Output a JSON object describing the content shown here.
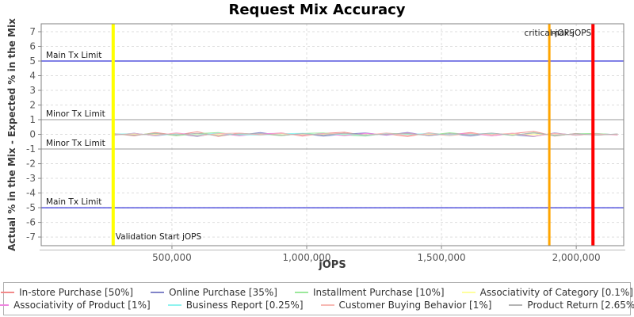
{
  "title": "Request Mix Accuracy",
  "chart_data": {
    "type": "line",
    "title": "Request Mix Accuracy",
    "xlabel": "jOPS",
    "ylabel": "Actual % in the Mix - Expected % in the Mix",
    "x_range": [
      15000,
      2176000
    ],
    "y_range": [
      -7.59,
      7.54
    ],
    "x_ticks": [
      {
        "value": 500000,
        "label": "500,000"
      },
      {
        "value": 1000000,
        "label": "1,000,000"
      },
      {
        "value": 1500000,
        "label": "1,500,000"
      },
      {
        "value": 2000000,
        "label": "2,000,000"
      }
    ],
    "y_ticks": [
      -7,
      -6,
      -5,
      -4,
      -3,
      -2,
      -1,
      0,
      1,
      2,
      3,
      4,
      5,
      6,
      7
    ],
    "grid": true,
    "legend_position": "bottom",
    "colors": {
      "grid": "#DDDDDD",
      "border": "#808080",
      "axis": "#BBBBBB",
      "tick_mark": "#888888"
    },
    "limit_lines": [
      {
        "id": "main-tx-limit-upper",
        "label": "Main Tx Limit",
        "y": 5,
        "color": "#0000CC"
      },
      {
        "id": "minor-tx-limit-upper",
        "label": "Minor Tx Limit",
        "y": 1,
        "color": "#999999"
      },
      {
        "id": "minor-tx-limit-lower",
        "label": "Minor Tx Limit",
        "y": -1,
        "color": "#999999"
      },
      {
        "id": "main-tx-limit-lower",
        "label": "Main Tx Limit",
        "y": -5,
        "color": "#0000CC"
      }
    ],
    "marker_lines": [
      {
        "id": "validation-start",
        "label": "Validation Start jOPS",
        "x": 282000,
        "color": "#FFFF00",
        "width": 4,
        "label_pos": "bottom",
        "label_anchor": "start"
      },
      {
        "id": "critical-jops",
        "label": "critical-jOPS",
        "x": 1900000,
        "color": "#FFA500",
        "width": 3,
        "label_pos": "top",
        "label_anchor": "middle"
      },
      {
        "id": "max-jops",
        "label": "max-jOPS",
        "x": 2062000,
        "color": "#FF0000",
        "width": 4,
        "label_pos": "top",
        "label_anchor": "end"
      }
    ],
    "x_start": 282000,
    "x_step": 78000,
    "series": [
      {
        "name": "In-store Purchase [50%]",
        "color": "#F28A8A",
        "values": [
          0.05,
          -0.1,
          0.12,
          -0.05,
          0.18,
          -0.14,
          0.08,
          -0.02,
          0.1,
          -0.12,
          0.06,
          0.14,
          -0.08,
          0.04,
          -0.15,
          0.1,
          -0.04,
          0.12,
          -0.1,
          0.05,
          0.2,
          -0.12,
          0.06,
          -0.05,
          0.02
        ]
      },
      {
        "name": "Online Purchase [35%]",
        "color": "#8184C8",
        "values": [
          -0.06,
          0.08,
          -0.1,
          0.04,
          -0.14,
          0.1,
          -0.05,
          0.12,
          -0.08,
          0.05,
          -0.12,
          0.02,
          0.1,
          -0.06,
          0.13,
          -0.09,
          0.04,
          -0.11,
          0.07,
          -0.03,
          -0.15,
          0.1,
          -0.07,
          0.04,
          -0.02
        ]
      },
      {
        "name": "Installment Purchase [10%]",
        "color": "#9BE89B",
        "values": [
          0.03,
          -0.05,
          0.08,
          -0.1,
          0.05,
          0.12,
          -0.07,
          0.03,
          -0.09,
          0.06,
          0.1,
          -0.04,
          -0.12,
          0.08,
          0.02,
          -0.06,
          0.11,
          -0.03,
          0.05,
          -0.08,
          0.12,
          -0.1,
          0.04,
          0.06,
          -0.04
        ]
      },
      {
        "name": "Associativity of Category [0.1%]",
        "color": "#FFFF9E",
        "values": [
          0.01,
          -0.02,
          0.02,
          -0.01,
          0.03,
          -0.02,
          0.01,
          0.02,
          -0.03,
          0.01,
          -0.01,
          0.02,
          -0.02,
          0.03,
          -0.01,
          0.01,
          -0.02,
          0.02,
          -0.03,
          0.01,
          0.02,
          -0.01,
          0.01,
          -0.02,
          0.01
        ]
      },
      {
        "name": "Associativity of Product [1%]",
        "color": "#EE86E0",
        "values": [
          -0.04,
          0.06,
          -0.08,
          0.1,
          -0.05,
          0.07,
          -0.1,
          0.04,
          0.08,
          -0.06,
          0.05,
          -0.09,
          0.07,
          -0.03,
          0.09,
          -0.07,
          0.02,
          0.06,
          -0.1,
          0.08,
          -0.12,
          0.05,
          -0.04,
          0.03,
          -0.05
        ]
      },
      {
        "name": "Business Report [0.25%]",
        "color": "#8FF3EF",
        "values": [
          0.02,
          0.05,
          -0.07,
          0.03,
          -0.04,
          0.08,
          -0.02,
          -0.06,
          0.04,
          0.07,
          -0.05,
          0.03,
          -0.08,
          0.05,
          -0.02,
          0.06,
          -0.04,
          0.02,
          0.07,
          -0.05,
          0.09,
          -0.06,
          0.03,
          -0.03,
          0.02
        ]
      },
      {
        "name": "Customer Buying Behavior [1%]",
        "color": "#F7B9B4",
        "values": [
          -0.03,
          0.04,
          -0.06,
          0.08,
          -0.1,
          0.05,
          0.09,
          -0.04,
          0.06,
          -0.08,
          0.03,
          0.07,
          -0.05,
          0.1,
          -0.07,
          0.04,
          -0.09,
          0.06,
          -0.02,
          0.08,
          -0.11,
          0.07,
          -0.05,
          0.02,
          -0.03
        ]
      },
      {
        "name": "Product Return [2.65%]",
        "color": "#B4B4B4",
        "values": [
          0.04,
          -0.06,
          0.05,
          -0.03,
          0.07,
          -0.09,
          0.03,
          0.05,
          -0.07,
          0.04,
          -0.05,
          0.08,
          -0.04,
          0.02,
          0.06,
          -0.08,
          0.05,
          -0.03,
          0.09,
          -0.06,
          0.1,
          -0.08,
          0.04,
          -0.05,
          0.03
        ]
      }
    ]
  }
}
